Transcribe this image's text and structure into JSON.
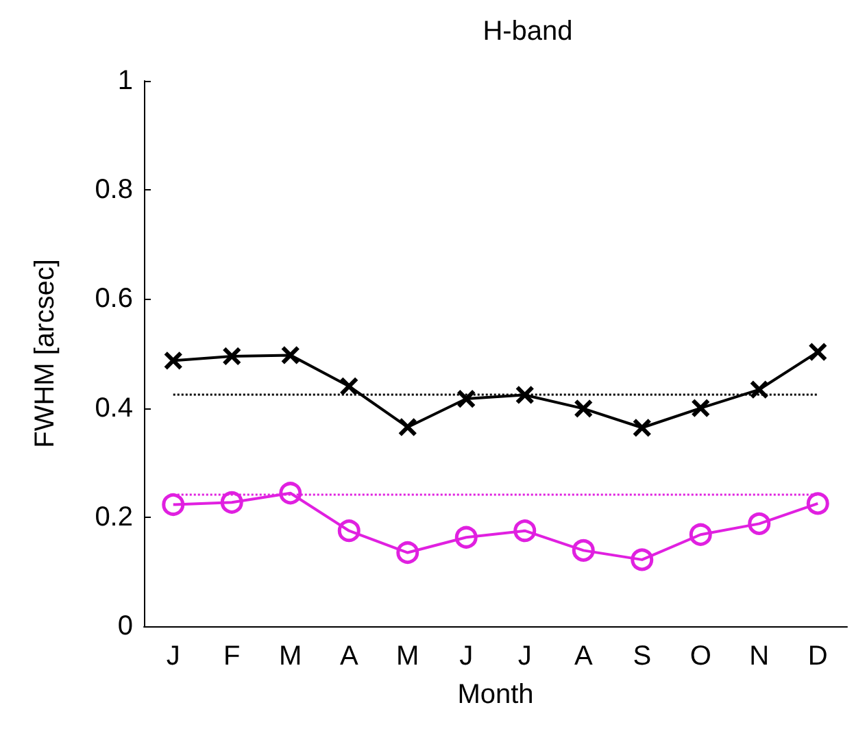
{
  "chart_data": {
    "type": "line",
    "title": "H-band",
    "xlabel": "Month",
    "ylabel": "FWHM [arcsec]",
    "categories": [
      "J",
      "F",
      "M",
      "A",
      "M",
      "J",
      "J",
      "A",
      "S",
      "O",
      "N",
      "D"
    ],
    "series": [
      {
        "color": "#000000",
        "marker": "cross",
        "values": [
          0.487,
          0.495,
          0.497,
          0.44,
          0.365,
          0.417,
          0.424,
          0.399,
          0.364,
          0.4,
          0.434,
          0.503
        ]
      },
      {
        "color": "#e020e0",
        "marker": "circle",
        "values": [
          0.223,
          0.227,
          0.244,
          0.175,
          0.135,
          0.163,
          0.175,
          0.139,
          0.122,
          0.168,
          0.188,
          0.225
        ]
      }
    ],
    "ref_lines": [
      {
        "axis": "y",
        "value": 0.425,
        "color": "#000000",
        "line_style": "dotted"
      },
      {
        "axis": "y",
        "value": 0.241,
        "color": "#e020e0",
        "line_style": "dotted"
      }
    ],
    "ylim": [
      0,
      1
    ],
    "yticks": [
      0,
      0.2,
      0.4,
      0.6,
      0.8,
      1
    ],
    "grid": false
  }
}
